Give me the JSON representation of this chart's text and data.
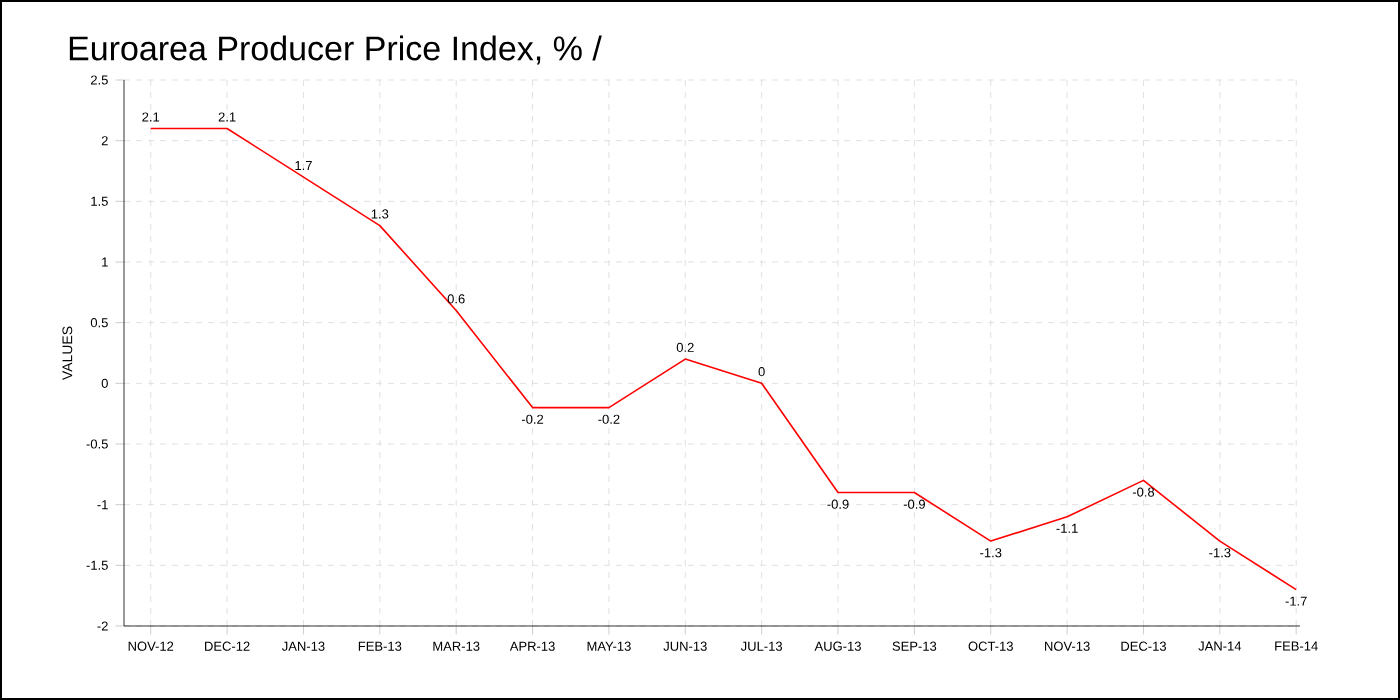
{
  "chart_data": {
    "type": "line",
    "title": "Euroarea Producer Price Index, %  /",
    "ylabel": "VALUES",
    "categories": [
      "NOV-12",
      "DEC-12",
      "JAN-13",
      "FEB-13",
      "MAR-13",
      "APR-13",
      "MAY-13",
      "JUN-13",
      "JUL-13",
      "AUG-13",
      "SEP-13",
      "OCT-13",
      "NOV-13",
      "DEC-13",
      "JAN-14",
      "FEB-14"
    ],
    "series": [
      {
        "color": "#ff0000",
        "values": [
          2.1,
          2.1,
          1.7,
          1.3,
          0.6,
          -0.2,
          -0.2,
          0.2,
          0,
          -0.9,
          -0.9,
          -1.3,
          -1.1,
          -0.8,
          -1.3,
          -1.7
        ]
      }
    ],
    "ylim": [
      -2,
      2.5
    ],
    "yticks": [
      -2,
      -1.5,
      -1,
      -0.5,
      0,
      0.5,
      1,
      1.5,
      2,
      2.5
    ],
    "grid": true,
    "data_labels": true,
    "marker": "none",
    "line_style": "solid"
  }
}
